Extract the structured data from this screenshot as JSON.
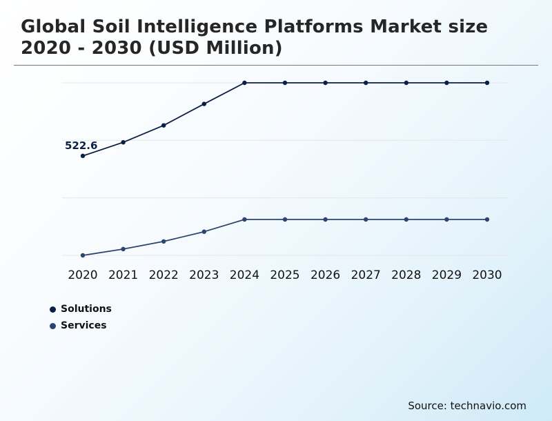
{
  "title_lines": [
    "Global Soil Intelligence Platforms Market size",
    "2020 - 2030 (USD Million)"
  ],
  "source": "Source: technavio.com",
  "colors": {
    "solutions": "#0b1e45",
    "services": "#2e4470",
    "grid": "#e6e6e6"
  },
  "chart_data": {
    "type": "line",
    "title": "Global Soil Intelligence Platforms Market size 2020 - 2030 (USD Million)",
    "xlabel": "",
    "ylabel": "",
    "x": [
      "2020",
      "2021",
      "2022",
      "2023",
      "2024",
      "2025",
      "2026",
      "2027",
      "2028",
      "2029",
      "2030"
    ],
    "ylim": [
      0,
      1200
    ],
    "y_ticks_shown": false,
    "grid": true,
    "legend": "bottom-left",
    "series": [
      {
        "name": "Solutions",
        "values": [
          522.6,
          594,
          683,
          796,
          907,
          907,
          907,
          907,
          907,
          907,
          907
        ]
      },
      {
        "name": "Services",
        "values": [
          0,
          33,
          73,
          124,
          188,
          188,
          188,
          188,
          188,
          188,
          188
        ]
      }
    ],
    "annotations": [
      {
        "series": 0,
        "index": 0,
        "text": "522.6"
      }
    ]
  }
}
